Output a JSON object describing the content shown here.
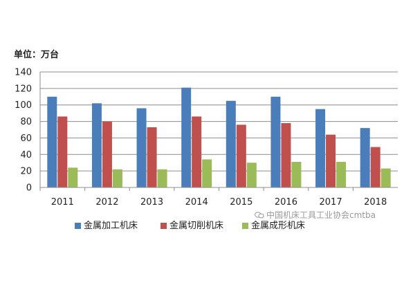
{
  "unit_label": "单位：万台",
  "watermark": "中国机床工具工业协会cmtba",
  "colors": {
    "metal_processing": "#4a7ebb",
    "metal_cutting": "#c0504d",
    "metal_forming": "#9bbb59"
  },
  "chart_data": {
    "type": "bar",
    "title": "",
    "xlabel": "",
    "ylabel": "",
    "ylim": [
      0,
      140
    ],
    "yticks": [
      0,
      20,
      40,
      60,
      80,
      100,
      120,
      140
    ],
    "grid": true,
    "legend_position": "bottom",
    "categories": [
      "2011",
      "2012",
      "2013",
      "2014",
      "2015",
      "2016",
      "2017",
      "2018"
    ],
    "series": [
      {
        "name": "金属加工机床",
        "values": [
          110,
          102,
          96,
          121,
          105,
          110,
          95,
          72
        ]
      },
      {
        "name": "金属切削机床",
        "values": [
          86,
          80,
          73,
          86,
          76,
          78,
          64,
          49
        ]
      },
      {
        "name": "金属成形机床",
        "values": [
          24,
          22,
          22,
          34,
          30,
          31,
          31,
          23
        ]
      }
    ]
  }
}
